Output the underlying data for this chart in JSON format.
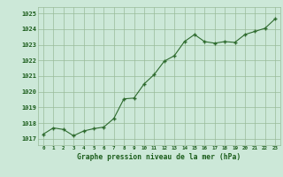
{
  "x": [
    0,
    1,
    2,
    3,
    4,
    5,
    6,
    7,
    8,
    9,
    10,
    11,
    12,
    13,
    14,
    15,
    16,
    17,
    18,
    19,
    20,
    21,
    22,
    23
  ],
  "y": [
    1017.3,
    1017.7,
    1017.6,
    1017.2,
    1017.5,
    1017.65,
    1017.75,
    1018.3,
    1019.55,
    1019.6,
    1020.5,
    1021.1,
    1021.95,
    1022.3,
    1023.2,
    1023.65,
    1023.2,
    1023.1,
    1023.2,
    1023.15,
    1023.65,
    1023.85,
    1024.05,
    1024.65
  ],
  "xlabel": "Graphe pression niveau de la mer (hPa)",
  "ylim": [
    1016.6,
    1025.4
  ],
  "yticks": [
    1017,
    1018,
    1019,
    1020,
    1021,
    1022,
    1023,
    1024,
    1025
  ],
  "xticks": [
    0,
    1,
    2,
    3,
    4,
    5,
    6,
    7,
    8,
    9,
    10,
    11,
    12,
    13,
    14,
    15,
    16,
    17,
    18,
    19,
    20,
    21,
    22,
    23
  ],
  "line_color": "#2d6a2d",
  "marker_color": "#2d6a2d",
  "bg_color": "#cce8d8",
  "grid_color": "#99bb99",
  "text_color": "#1a5c1a"
}
